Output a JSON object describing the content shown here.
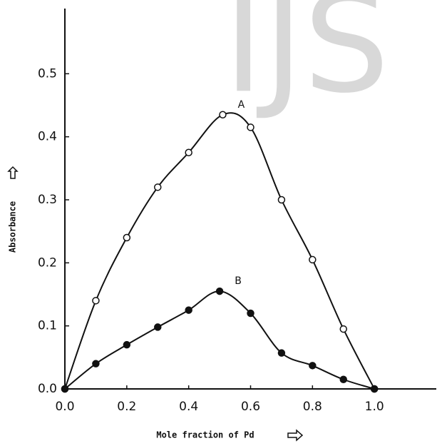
{
  "chart_data": {
    "type": "line",
    "watermark": "IJS",
    "x_label": "Mole fraction of Pd",
    "y_label": "Absorbance",
    "xlim": [
      0,
      1.2
    ],
    "ylim": [
      0,
      0.6
    ],
    "xticks": [
      {
        "value": 0,
        "label": "0.0"
      },
      0.2,
      0.4,
      0.6,
      0.8,
      {
        "value": 1,
        "label": "1.0"
      }
    ],
    "yticks": [
      {
        "value": 0,
        "label": "0.0"
      },
      0.1,
      0.2,
      0.3,
      0.4,
      0.5
    ],
    "series": [
      {
        "name": "A",
        "color": "#111111",
        "marker": "open",
        "x": [
          0,
          0.1,
          0.2,
          0.3,
          0.4,
          0.51,
          0.6,
          0.7,
          0.8,
          0.9,
          1.0
        ],
        "values": [
          0,
          0.14,
          0.24,
          0.32,
          0.375,
          0.435,
          0.415,
          0.3,
          0.205,
          0.095,
          0
        ]
      },
      {
        "name": "B",
        "color": "#111111",
        "marker": "filled",
        "x": [
          0,
          0.1,
          0.2,
          0.3,
          0.4,
          0.5,
          0.6,
          0.7,
          0.8,
          0.9,
          1.0
        ],
        "values": [
          0,
          0.04,
          0.07,
          0.098,
          0.125,
          0.155,
          0.12,
          0.057,
          0.037,
          0.015,
          0
        ]
      }
    ]
  }
}
